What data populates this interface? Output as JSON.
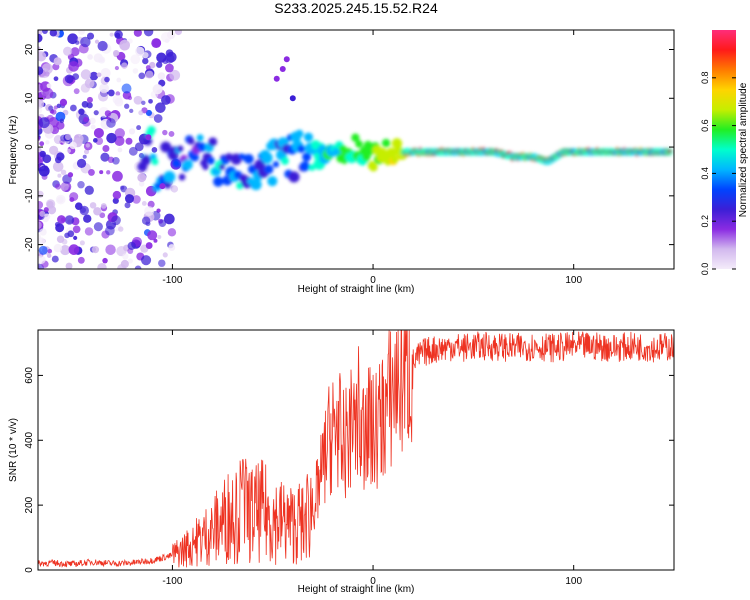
{
  "title": "S233.2025.245.15.52.R24",
  "chart_data": [
    {
      "type": "heatmap",
      "name": "spectrogram",
      "xlabel": "Height of straight line (km)",
      "ylabel": "Frequency (Hz)",
      "xlim": [
        -167,
        150
      ],
      "ylim": [
        -25,
        24
      ],
      "xticks": [
        -100,
        0,
        100
      ],
      "yticks": [
        20,
        10,
        0,
        -10,
        -20
      ],
      "colorbar": {
        "label": "Normalized spectral amplitude",
        "range": [
          0,
          1
        ],
        "ticks": [
          "0.0",
          "0.2",
          "0.4",
          "0.6",
          "0.8"
        ],
        "colors": [
          "#f4ecfa",
          "#d2b8ee",
          "#8a2be2",
          "#3b1fd6",
          "#0044ff",
          "#00b7ff",
          "#00ffcc",
          "#22ee22",
          "#c6ee00",
          "#ffd400",
          "#ff7a00",
          "#ff1a1a",
          "#ff2d7a"
        ]
      },
      "ridge": [
        {
          "x": -110,
          "y": -5
        },
        {
          "x": -100,
          "y": -3
        },
        {
          "x": -90,
          "y": -2
        },
        {
          "x": -80,
          "y": -3
        },
        {
          "x": -70,
          "y": -4
        },
        {
          "x": -60,
          "y": -5
        },
        {
          "x": -50,
          "y": -4
        },
        {
          "x": -40,
          "y": -2
        },
        {
          "x": -30,
          "y": -1
        },
        {
          "x": -20,
          "y": -2
        },
        {
          "x": -10,
          "y": 0
        },
        {
          "x": 0,
          "y": -2
        },
        {
          "x": 10,
          "y": -1
        },
        {
          "x": 20,
          "y": -1
        },
        {
          "x": 40,
          "y": -1
        },
        {
          "x": 60,
          "y": -1
        },
        {
          "x": 70,
          "y": -2
        },
        {
          "x": 80,
          "y": -2
        },
        {
          "x": 87,
          "y": -3
        },
        {
          "x": 95,
          "y": -1
        },
        {
          "x": 120,
          "y": -1
        },
        {
          "x": 148,
          "y": -1
        }
      ]
    },
    {
      "type": "line",
      "name": "snr",
      "xlabel": "Height of straight line (km)",
      "ylabel": "SNR (10 * v/v)",
      "xlim": [
        -167,
        150
      ],
      "ylim": [
        0,
        740
      ],
      "xticks": [
        -100,
        0,
        100
      ],
      "yticks": [
        0,
        200,
        400,
        600
      ],
      "color": "#ee3322",
      "series": [
        {
          "name": "SNR",
          "x": [
            -167,
            -160,
            -150,
            -140,
            -130,
            -120,
            -110,
            -100,
            -95,
            -90,
            -85,
            -80,
            -75,
            -70,
            -65,
            -60,
            -55,
            -50,
            -45,
            -40,
            -35,
            -30,
            -27,
            -25,
            -22,
            -20,
            -18,
            -15,
            -12,
            -10,
            -8,
            -5,
            -3,
            0,
            3,
            5,
            8,
            10,
            12,
            15,
            18,
            20,
            23,
            25,
            30,
            35,
            40,
            45,
            50,
            60,
            70,
            80,
            90,
            100,
            110,
            120,
            130,
            140,
            150
          ],
          "y": [
            20,
            22,
            18,
            25,
            20,
            22,
            30,
            45,
            60,
            80,
            100,
            120,
            150,
            180,
            190,
            170,
            180,
            160,
            150,
            140,
            150,
            200,
            260,
            320,
            400,
            430,
            460,
            380,
            420,
            440,
            420,
            430,
            450,
            420,
            450,
            480,
            520,
            560,
            590,
            610,
            630,
            640,
            660,
            670,
            680,
            685,
            690,
            685,
            690,
            690,
            685,
            690,
            685,
            690,
            690,
            685,
            690,
            685,
            690
          ]
        }
      ],
      "spikes": [
        {
          "x": -20,
          "y": 670
        },
        {
          "x": -16,
          "y": 600
        },
        {
          "x": -11,
          "y": 560
        },
        {
          "x": -7,
          "y": 690
        },
        {
          "x": -4,
          "y": 540
        },
        {
          "x": -28,
          "y": 440
        },
        {
          "x": -35,
          "y": 400
        },
        {
          "x": -65,
          "y": 340
        },
        {
          "x": -68,
          "y": 300
        },
        {
          "x": -90,
          "y": 130
        }
      ]
    }
  ]
}
